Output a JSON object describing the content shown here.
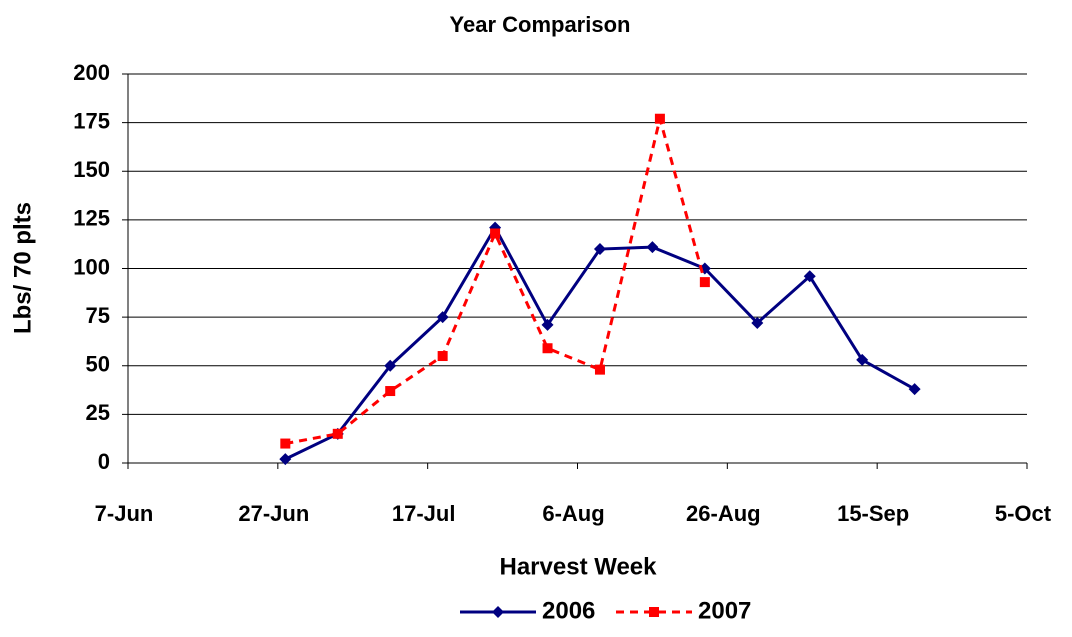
{
  "chart_data": {
    "type": "line",
    "title": "Year Comparison",
    "x_label": "Harvest Week",
    "y_label": "Lbs/ 70 plts",
    "xlim": [
      "7-Jun",
      "5-Oct"
    ],
    "xticks": [
      "7-Jun",
      "27-Jun",
      "17-Jul",
      "6-Aug",
      "26-Aug",
      "15-Sep",
      "5-Oct"
    ],
    "ylim": [
      0,
      200
    ],
    "yticks": [
      0,
      25,
      50,
      75,
      100,
      125,
      150,
      175,
      200
    ],
    "grid": true,
    "legend": "bottom",
    "series": [
      {
        "name": "2006",
        "color": "#000080",
        "dash": false,
        "marker": "diamond",
        "x": [
          "28-Jun",
          "5-Jul",
          "12-Jul",
          "19-Jul",
          "26-Jul",
          "2-Aug",
          "9-Aug",
          "16-Aug",
          "23-Aug",
          "30-Aug",
          "6-Sep",
          "13-Sep",
          "20-Sep"
        ],
        "values": [
          2,
          15,
          50,
          75,
          121,
          71,
          110,
          111,
          100,
          72,
          96,
          53,
          38
        ]
      },
      {
        "name": "2007",
        "color": "#ff0000",
        "dash": true,
        "marker": "square",
        "x": [
          "28-Jun",
          "5-Jul",
          "12-Jul",
          "19-Jul",
          "26-Jul",
          "2-Aug",
          "9-Aug",
          "17-Aug",
          "23-Aug"
        ],
        "values": [
          10,
          15,
          37,
          55,
          118,
          59,
          48,
          177,
          93
        ]
      }
    ]
  }
}
